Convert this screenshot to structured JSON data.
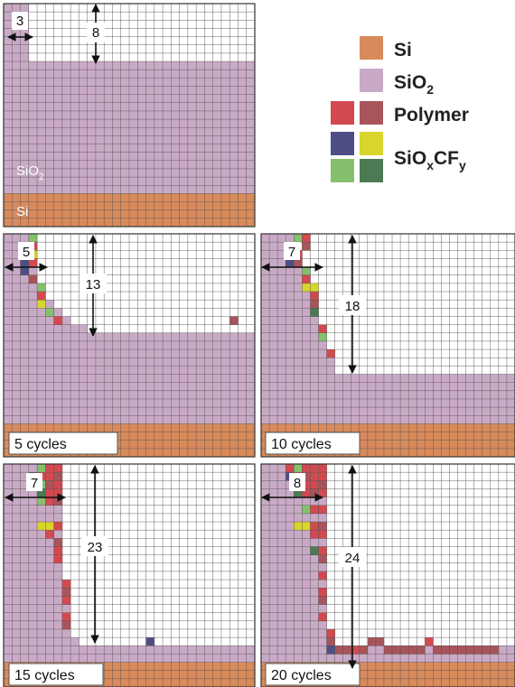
{
  "colors": {
    "si": "#d98a5b",
    "sio2": "#c9aac6",
    "polymer_red": "#d2494f",
    "polymer_brown": "#a7545a",
    "sioxcfy_blue": "#4e4e86",
    "sioxcfy_yellow": "#d8d52c",
    "sioxcfy_lightgreen": "#85c06d",
    "sioxcfy_darkgreen": "#4b7a54",
    "grid": "#555555",
    "background": "#ffffff"
  },
  "legend": [
    {
      "label": "Si",
      "sub": "",
      "tail": "",
      "swatches": [
        "si"
      ]
    },
    {
      "label": "SiO",
      "sub": "2",
      "tail": "",
      "swatches": [
        "sio2"
      ]
    },
    {
      "label": "Polymer",
      "sub": "",
      "tail": "",
      "swatches": [
        "polymer_red",
        "polymer_brown"
      ]
    },
    {
      "label": "SiO",
      "sub": "x",
      "tail": "CF",
      "sub2": "y",
      "swatches": [
        "sioxcfy_blue",
        "sioxcfy_yellow",
        "sioxcfy_lightgreen",
        "sioxcfy_darkgreen"
      ]
    }
  ],
  "panels": [
    {
      "id": "initial",
      "caption": "",
      "layer_labels": {
        "sio2": "SiO",
        "sio2_sub": "2",
        "si": "Si"
      },
      "width_label": "3",
      "depth_label": "8"
    },
    {
      "id": "c5",
      "caption": "5 cycles",
      "width_label": "5",
      "depth_label": "13"
    },
    {
      "id": "c10",
      "caption": "10 cycles",
      "width_label": "7",
      "depth_label": "18"
    },
    {
      "id": "c15",
      "caption": "15 cycles",
      "width_label": "7",
      "depth_label": "23"
    },
    {
      "id": "c20",
      "caption": "20 cycles",
      "width_label": "8",
      "depth_label": "24"
    }
  ]
}
